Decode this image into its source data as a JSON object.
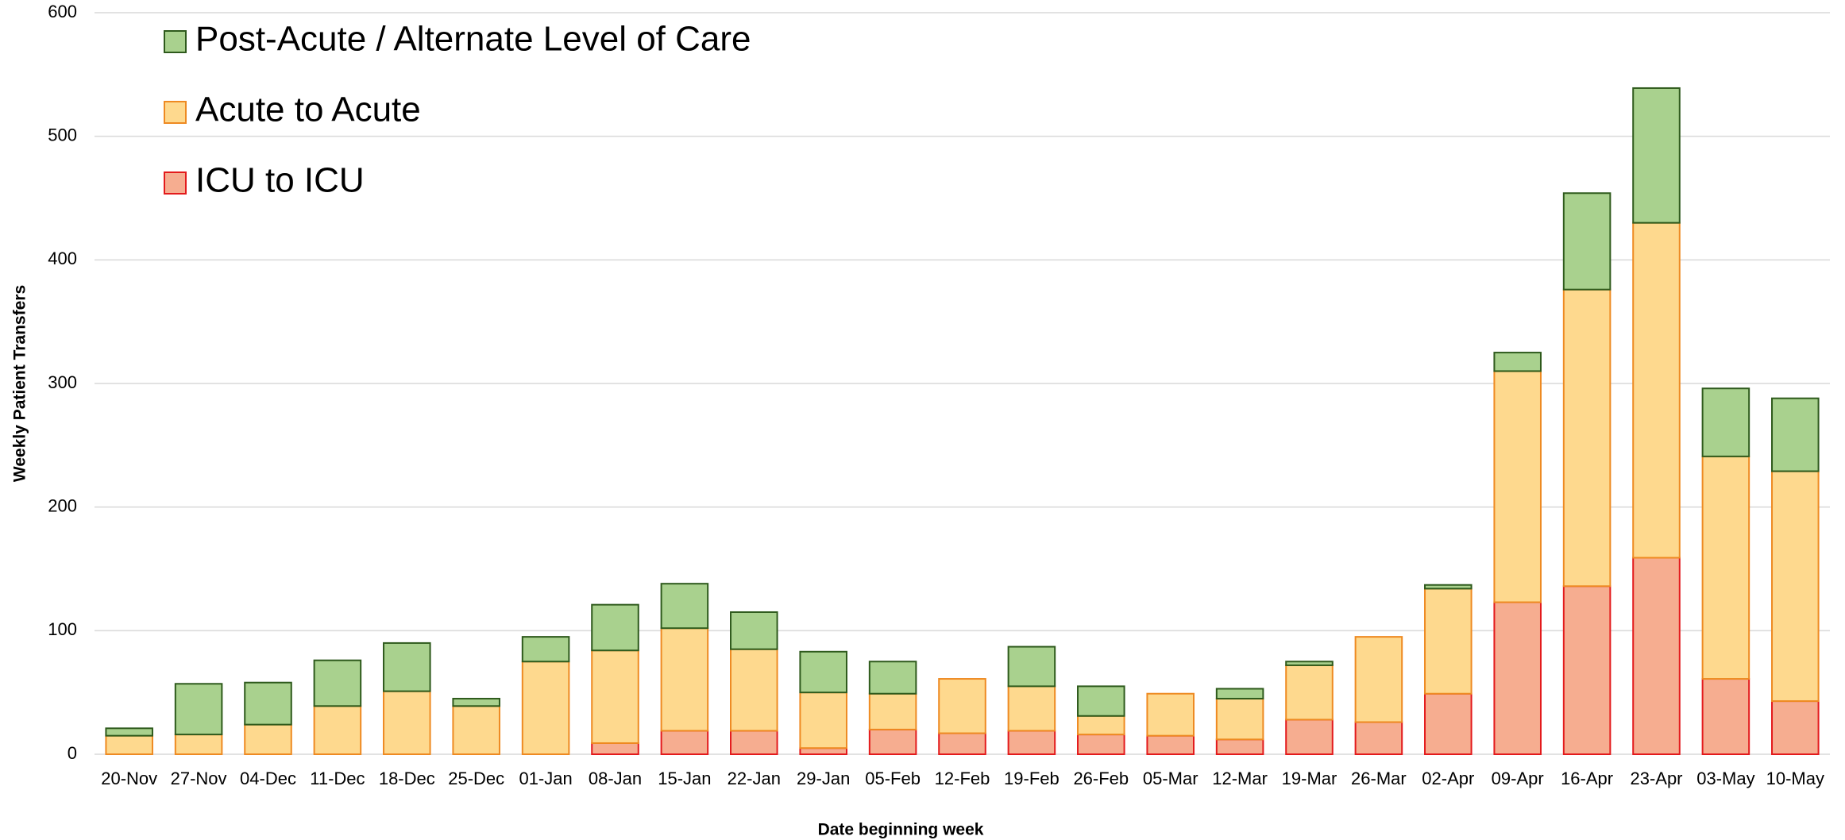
{
  "chart_data": {
    "type": "stacked_bar",
    "ylabel": "Weekly Patient Transfers",
    "xlabel": "Date beginning week",
    "categories": [
      "20-Nov",
      "27-Nov",
      "04-Dec",
      "11-Dec",
      "18-Dec",
      "25-Dec",
      "01-Jan",
      "08-Jan",
      "15-Jan",
      "22-Jan",
      "29-Jan",
      "05-Feb",
      "12-Feb",
      "19-Feb",
      "26-Feb",
      "05-Mar",
      "12-Mar",
      "19-Mar",
      "26-Mar",
      "02-Apr",
      "09-Apr",
      "16-Apr",
      "23-Apr",
      "03-May",
      "10-May"
    ],
    "series": [
      {
        "name": "ICU to ICU",
        "color": "#f6ad90",
        "edgecolor": "#e31a1c",
        "values": [
          0,
          0,
          0,
          0,
          0,
          0,
          0,
          9,
          19,
          19,
          5,
          20,
          17,
          19,
          16,
          15,
          12,
          28,
          26,
          49,
          123,
          136,
          159,
          61,
          43
        ]
      },
      {
        "name": "Acute to Acute",
        "color": "#fed98e",
        "edgecolor": "#ee8a22",
        "values": [
          15,
          16,
          24,
          39,
          51,
          39,
          75,
          75,
          83,
          66,
          45,
          29,
          44,
          36,
          15,
          34,
          33,
          44,
          69,
          85,
          187,
          240,
          271,
          180,
          186
        ]
      },
      {
        "name": "Post-Acute / Alternate Level of Care",
        "color": "#a9d18e",
        "edgecolor": "#2e5a1c",
        "values": [
          6,
          41,
          34,
          37,
          39,
          6,
          20,
          37,
          36,
          30,
          33,
          26,
          0,
          32,
          24,
          0,
          8,
          3,
          0,
          3,
          15,
          78,
          109,
          55,
          59
        ]
      }
    ],
    "ylim": [
      0,
      600
    ],
    "yticks": [
      0,
      100,
      200,
      300,
      400,
      500,
      600
    ],
    "grid": true,
    "legend": "upper left"
  }
}
